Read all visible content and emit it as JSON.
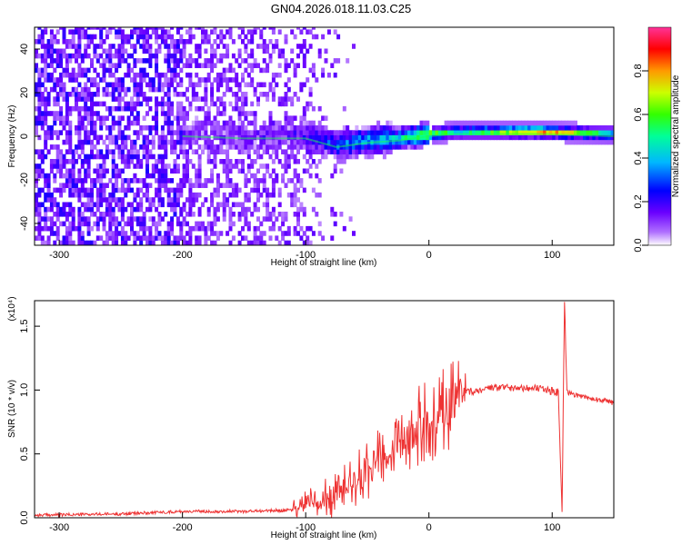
{
  "title": "GN04.2026.018.11.03.C25",
  "chart_data": [
    {
      "type": "heatmap",
      "xlabel": "Height of straight line (km)",
      "ylabel": "Frequency (Hz)",
      "xlim": [
        -320,
        150
      ],
      "ylim": [
        -50,
        50
      ],
      "xticks": [
        -300,
        -200,
        -100,
        0,
        100
      ],
      "yticks": [
        -40,
        -20,
        0,
        20,
        40
      ],
      "colorbar": {
        "label": "Normalized spectral amplitude",
        "range": [
          0.0,
          1.0
        ],
        "ticks": [
          0.0,
          0.2,
          0.4,
          0.6,
          0.8
        ],
        "colors": [
          "#9933ff",
          "#0000ff",
          "#00ccff",
          "#00ff66",
          "#ccff00",
          "#ff9900",
          "#ff0000",
          "#ff3399"
        ]
      },
      "ridge": [
        {
          "x": -200,
          "f": 0,
          "amp": 0.1
        },
        {
          "x": -150,
          "f": -1,
          "amp": 0.12
        },
        {
          "x": -100,
          "f": -1,
          "amp": 0.18
        },
        {
          "x": -75,
          "f": -5,
          "amp": 0.32
        },
        {
          "x": -50,
          "f": -3,
          "amp": 0.4
        },
        {
          "x": -25,
          "f": -2,
          "amp": 0.45
        },
        {
          "x": 0,
          "f": 0,
          "amp": 0.7
        },
        {
          "x": 20,
          "f": 1,
          "amp": 0.5
        },
        {
          "x": 90,
          "f": 1,
          "amp": 0.9
        },
        {
          "x": 150,
          "f": 0,
          "amp": 0.45
        }
      ]
    },
    {
      "type": "line",
      "xlabel": "Height of straight line (km)",
      "ylabel": "SNR (10 * v/v)",
      "yscale_label": "(x10⁴)",
      "xlim": [
        -320,
        150
      ],
      "ylim": [
        0,
        1.7
      ],
      "xticks": [
        -300,
        -200,
        -100,
        0,
        100
      ],
      "yticks": [
        0.0,
        0.5,
        1.0,
        1.5
      ],
      "series": [
        {
          "color": "#ee3333",
          "x": [
            -320,
            -250,
            -200,
            -150,
            -110,
            -100,
            -90,
            -75,
            -60,
            -50,
            -40,
            -30,
            -20,
            -10,
            0,
            10,
            20,
            30,
            40,
            50,
            60,
            70,
            80,
            90,
            100,
            105,
            108,
            110,
            112,
            115,
            120,
            130,
            140,
            150
          ],
          "y": [
            0.02,
            0.03,
            0.05,
            0.05,
            0.06,
            0.1,
            0.13,
            0.2,
            0.28,
            0.36,
            0.46,
            0.55,
            0.62,
            0.7,
            0.75,
            0.82,
            0.92,
            0.98,
            1.0,
            1.01,
            1.02,
            1.02,
            1.02,
            1.01,
            0.99,
            0.98,
            0.05,
            1.7,
            0.98,
            0.97,
            0.96,
            0.94,
            0.92,
            0.9
          ]
        }
      ]
    }
  ]
}
